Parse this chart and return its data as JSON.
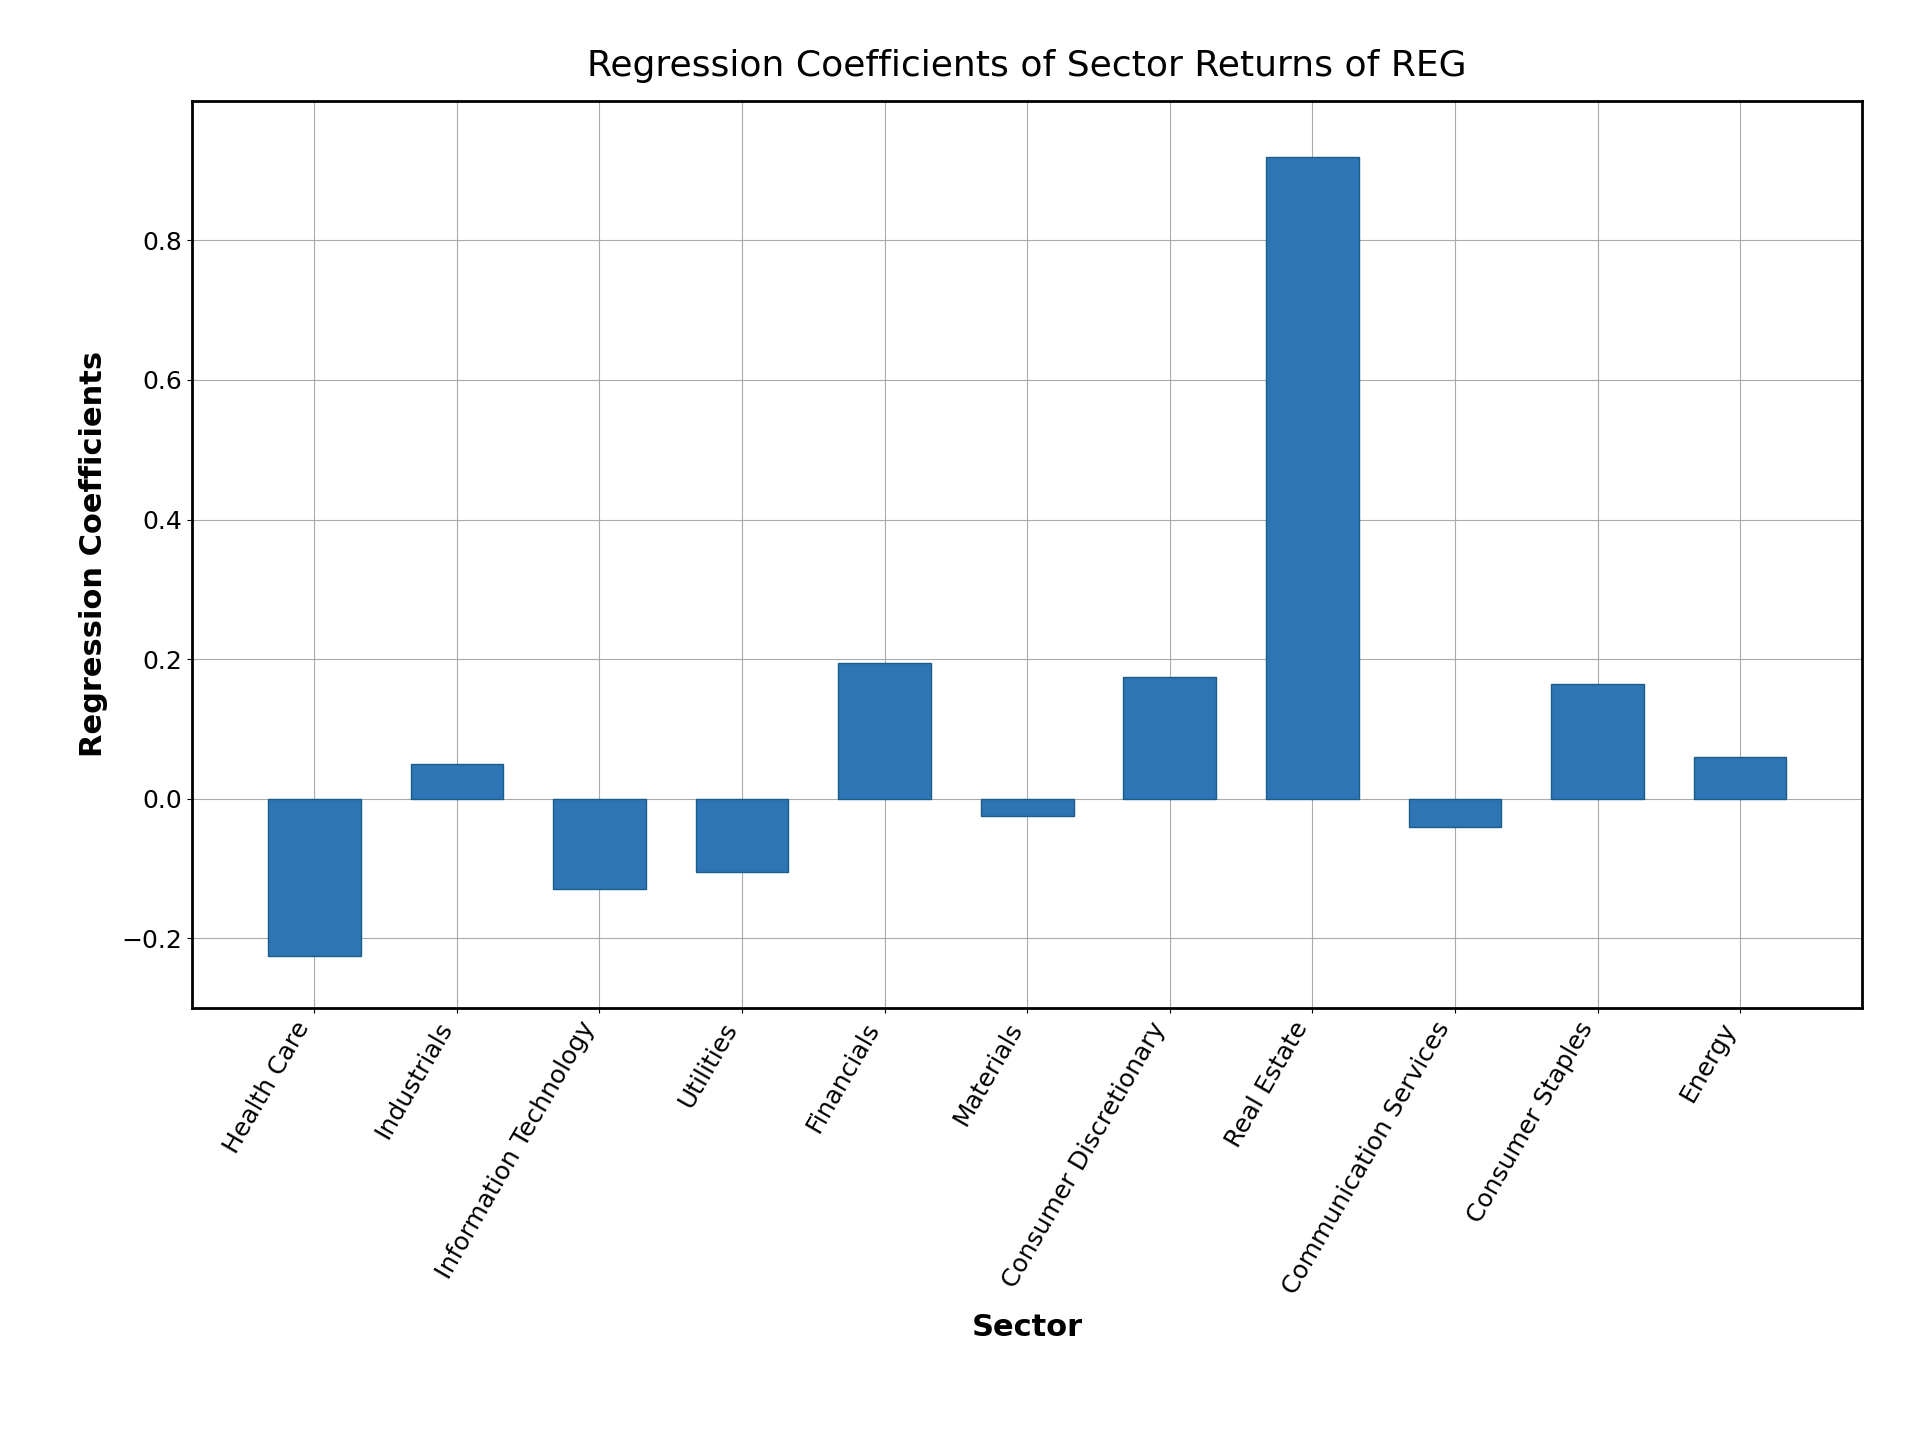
{
  "title": "Regression Coefficients of Sector Returns of REG",
  "xlabel": "Sector",
  "ylabel": "Regression Coefficients",
  "categories": [
    "Health Care",
    "Industrials",
    "Information Technology",
    "Utilities",
    "Financials",
    "Materials",
    "Consumer Discretionary",
    "Real Estate",
    "Communication Services",
    "Consumer Staples",
    "Energy"
  ],
  "values": [
    -0.225,
    0.05,
    -0.13,
    -0.105,
    0.195,
    -0.025,
    0.175,
    0.92,
    -0.04,
    0.165,
    0.06
  ],
  "bar_color": "#2e75b6",
  "bar_edgecolor": "#1a5c8a",
  "ylim": [
    -0.3,
    1.0
  ],
  "yticks": [
    -0.2,
    0.0,
    0.2,
    0.4,
    0.6,
    0.8
  ],
  "grid_color": "#aaaaaa",
  "background_color": "#ffffff",
  "title_fontsize": 26,
  "label_fontsize": 22,
  "tick_fontsize": 18,
  "figsize": [
    19.2,
    14.4
  ],
  "dpi": 100
}
